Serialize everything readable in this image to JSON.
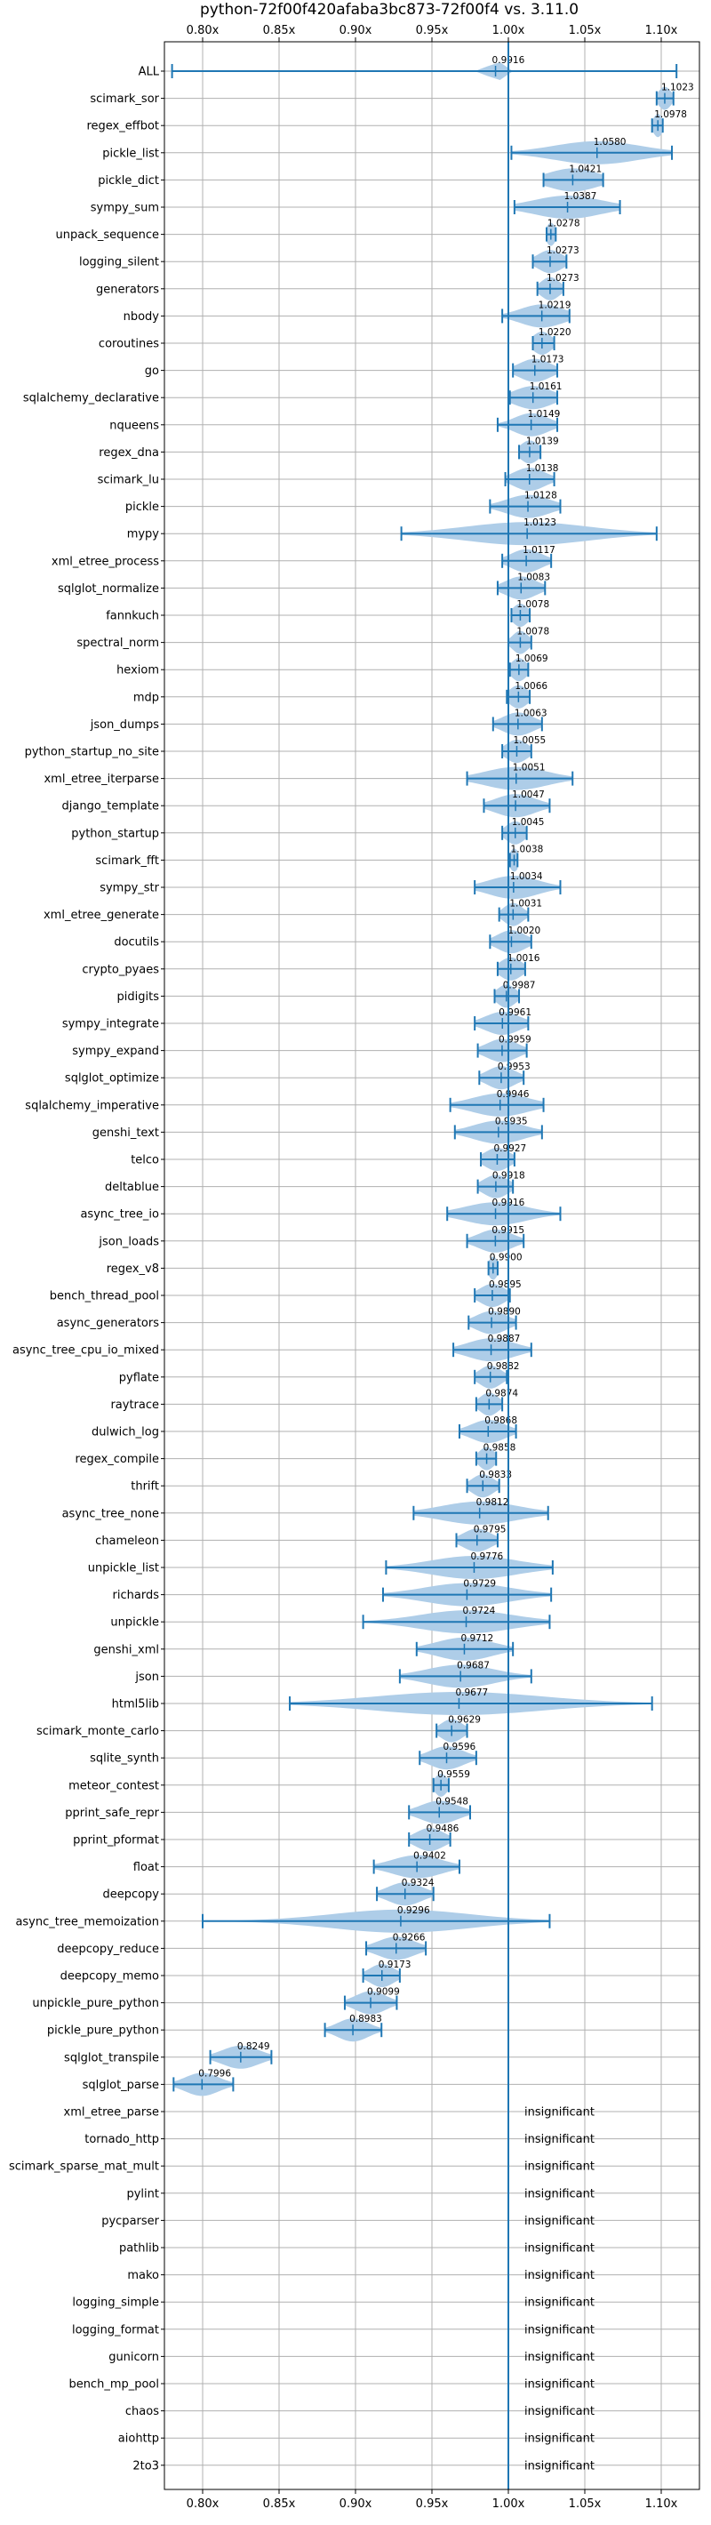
{
  "chart_data": {
    "type": "violin",
    "title": "python-72f00f420afaba3bc873-72f00f4 vs. 3.11.0",
    "xlim": [
      0.775,
      1.125
    ],
    "x_ticks": [
      {
        "value": 0.8,
        "label": "0.80x"
      },
      {
        "value": 0.85,
        "label": "0.85x"
      },
      {
        "value": 0.9,
        "label": "0.90x"
      },
      {
        "value": 0.95,
        "label": "0.95x"
      },
      {
        "value": 1.0,
        "label": "1.00x"
      },
      {
        "value": 1.05,
        "label": "1.05x"
      },
      {
        "value": 1.1,
        "label": "1.10x"
      }
    ],
    "reference_value": 1.0,
    "grid": true,
    "colors": {
      "violin": "#aecde8",
      "line": "#1f77b4",
      "grid": "#b0b0b0"
    },
    "insignificant_text": "insignificant",
    "benchmarks": [
      {
        "name": "ALL",
        "label": "0.9916",
        "mean": 0.9916,
        "min": 0.78,
        "max": 1.11,
        "spread": 0.004
      },
      {
        "name": "scimark_sor",
        "label": "1.1023",
        "mean": 1.1023,
        "min": 1.097,
        "max": 1.108,
        "spread": 0.004
      },
      {
        "name": "regex_effbot",
        "label": "1.0978",
        "mean": 1.0978,
        "min": 1.094,
        "max": 1.101,
        "spread": 0.003
      },
      {
        "name": "pickle_list",
        "label": "1.0580",
        "mean": 1.058,
        "min": 1.002,
        "max": 1.107,
        "spread": 0.028
      },
      {
        "name": "pickle_dict",
        "label": "1.0421",
        "mean": 1.0421,
        "min": 1.023,
        "max": 1.062,
        "spread": 0.016
      },
      {
        "name": "sympy_sum",
        "label": "1.0387",
        "mean": 1.0387,
        "min": 1.004,
        "max": 1.073,
        "spread": 0.022
      },
      {
        "name": "unpack_sequence",
        "label": "1.0278",
        "mean": 1.0278,
        "min": 1.025,
        "max": 1.031,
        "spread": 0.003
      },
      {
        "name": "logging_silent",
        "label": "1.0273",
        "mean": 1.0273,
        "min": 1.016,
        "max": 1.038,
        "spread": 0.008
      },
      {
        "name": "generators",
        "label": "1.0273",
        "mean": 1.0273,
        "min": 1.019,
        "max": 1.036,
        "spread": 0.006
      },
      {
        "name": "nbody",
        "label": "1.0219",
        "mean": 1.0219,
        "min": 0.996,
        "max": 1.04,
        "spread": 0.014
      },
      {
        "name": "coroutines",
        "label": "1.0220",
        "mean": 1.022,
        "min": 1.016,
        "max": 1.03,
        "spread": 0.006
      },
      {
        "name": "go",
        "label": "1.0173",
        "mean": 1.0173,
        "min": 1.003,
        "max": 1.032,
        "spread": 0.01
      },
      {
        "name": "sqlalchemy_declarative",
        "label": "1.0161",
        "mean": 1.0161,
        "min": 1.001,
        "max": 1.032,
        "spread": 0.012
      },
      {
        "name": "nqueens",
        "label": "1.0149",
        "mean": 1.0149,
        "min": 0.993,
        "max": 1.032,
        "spread": 0.011
      },
      {
        "name": "regex_dna",
        "label": "1.0139",
        "mean": 1.0139,
        "min": 1.007,
        "max": 1.021,
        "spread": 0.006
      },
      {
        "name": "scimark_lu",
        "label": "1.0138",
        "mean": 1.0138,
        "min": 0.998,
        "max": 1.03,
        "spread": 0.01
      },
      {
        "name": "pickle",
        "label": "1.0128",
        "mean": 1.0128,
        "min": 0.988,
        "max": 1.034,
        "spread": 0.014
      },
      {
        "name": "mypy",
        "label": "1.0123",
        "mean": 1.0123,
        "min": 0.93,
        "max": 1.097,
        "spread": 0.04
      },
      {
        "name": "xml_etree_process",
        "label": "1.0117",
        "mean": 1.0117,
        "min": 0.996,
        "max": 1.028,
        "spread": 0.01
      },
      {
        "name": "sqlglot_normalize",
        "label": "1.0083",
        "mean": 1.0083,
        "min": 0.993,
        "max": 1.024,
        "spread": 0.01
      },
      {
        "name": "fannkuch",
        "label": "1.0078",
        "mean": 1.0078,
        "min": 1.002,
        "max": 1.014,
        "spread": 0.005
      },
      {
        "name": "spectral_norm",
        "label": "1.0078",
        "mean": 1.0078,
        "min": 1.0,
        "max": 1.015,
        "spread": 0.005
      },
      {
        "name": "hexiom",
        "label": "1.0069",
        "mean": 1.0069,
        "min": 1.001,
        "max": 1.013,
        "spread": 0.005
      },
      {
        "name": "mdp",
        "label": "1.0066",
        "mean": 1.0066,
        "min": 0.999,
        "max": 1.014,
        "spread": 0.006
      },
      {
        "name": "json_dumps",
        "label": "1.0063",
        "mean": 1.0063,
        "min": 0.99,
        "max": 1.022,
        "spread": 0.01
      },
      {
        "name": "python_startup_no_site",
        "label": "1.0055",
        "mean": 1.0055,
        "min": 0.996,
        "max": 1.015,
        "spread": 0.007
      },
      {
        "name": "xml_etree_iterparse",
        "label": "1.0051",
        "mean": 1.0051,
        "min": 0.973,
        "max": 1.042,
        "spread": 0.02
      },
      {
        "name": "django_template",
        "label": "1.0047",
        "mean": 1.0047,
        "min": 0.984,
        "max": 1.027,
        "spread": 0.013
      },
      {
        "name": "python_startup",
        "label": "1.0045",
        "mean": 1.0045,
        "min": 0.996,
        "max": 1.012,
        "spread": 0.006
      },
      {
        "name": "scimark_fft",
        "label": "1.0038",
        "mean": 1.0038,
        "min": 1.001,
        "max": 1.006,
        "spread": 0.003
      },
      {
        "name": "sympy_str",
        "label": "1.0034",
        "mean": 1.0034,
        "min": 0.978,
        "max": 1.034,
        "spread": 0.016
      },
      {
        "name": "xml_etree_generate",
        "label": "1.0031",
        "mean": 1.0031,
        "min": 0.994,
        "max": 1.013,
        "spread": 0.006
      },
      {
        "name": "docutils",
        "label": "1.0020",
        "mean": 1.002,
        "min": 0.988,
        "max": 1.015,
        "spread": 0.009
      },
      {
        "name": "crypto_pyaes",
        "label": "1.0016",
        "mean": 1.0016,
        "min": 0.993,
        "max": 1.011,
        "spread": 0.007
      },
      {
        "name": "pidigits",
        "label": "0.9987",
        "mean": 0.9987,
        "min": 0.991,
        "max": 1.007,
        "spread": 0.006
      },
      {
        "name": "sympy_integrate",
        "label": "0.9961",
        "mean": 0.9961,
        "min": 0.978,
        "max": 1.013,
        "spread": 0.011
      },
      {
        "name": "sympy_expand",
        "label": "0.9959",
        "mean": 0.9959,
        "min": 0.98,
        "max": 1.012,
        "spread": 0.01
      },
      {
        "name": "sqlglot_optimize",
        "label": "0.9953",
        "mean": 0.9953,
        "min": 0.981,
        "max": 1.01,
        "spread": 0.009
      },
      {
        "name": "sqlalchemy_imperative",
        "label": "0.9946",
        "mean": 0.9946,
        "min": 0.962,
        "max": 1.023,
        "spread": 0.018
      },
      {
        "name": "genshi_text",
        "label": "0.9935",
        "mean": 0.9935,
        "min": 0.965,
        "max": 1.022,
        "spread": 0.016
      },
      {
        "name": "telco",
        "label": "0.9927",
        "mean": 0.9927,
        "min": 0.982,
        "max": 1.004,
        "spread": 0.008
      },
      {
        "name": "deltablue",
        "label": "0.9918",
        "mean": 0.9918,
        "min": 0.98,
        "max": 1.003,
        "spread": 0.008
      },
      {
        "name": "async_tree_io",
        "label": "0.9916",
        "mean": 0.9916,
        "min": 0.96,
        "max": 1.034,
        "spread": 0.02
      },
      {
        "name": "json_loads",
        "label": "0.9915",
        "mean": 0.9915,
        "min": 0.973,
        "max": 1.01,
        "spread": 0.011
      },
      {
        "name": "regex_v8",
        "label": "0.9900",
        "mean": 0.99,
        "min": 0.987,
        "max": 0.993,
        "spread": 0.003
      },
      {
        "name": "bench_thread_pool",
        "label": "0.9895",
        "mean": 0.9895,
        "min": 0.978,
        "max": 1.001,
        "spread": 0.008
      },
      {
        "name": "async_generators",
        "label": "0.9890",
        "mean": 0.989,
        "min": 0.974,
        "max": 1.005,
        "spread": 0.01
      },
      {
        "name": "async_tree_cpu_io_mixed",
        "label": "0.9887",
        "mean": 0.9887,
        "min": 0.964,
        "max": 1.015,
        "spread": 0.015
      },
      {
        "name": "pyflate",
        "label": "0.9882",
        "mean": 0.9882,
        "min": 0.978,
        "max": 0.999,
        "spread": 0.007
      },
      {
        "name": "raytrace",
        "label": "0.9874",
        "mean": 0.9874,
        "min": 0.979,
        "max": 0.996,
        "spread": 0.006
      },
      {
        "name": "dulwich_log",
        "label": "0.9868",
        "mean": 0.9868,
        "min": 0.968,
        "max": 1.005,
        "spread": 0.011
      },
      {
        "name": "regex_compile",
        "label": "0.9858",
        "mean": 0.9858,
        "min": 0.979,
        "max": 0.992,
        "spread": 0.005
      },
      {
        "name": "thrift",
        "label": "0.9833",
        "mean": 0.9833,
        "min": 0.973,
        "max": 0.994,
        "spread": 0.007
      },
      {
        "name": "async_tree_none",
        "label": "0.9812",
        "mean": 0.9812,
        "min": 0.938,
        "max": 1.026,
        "spread": 0.025
      },
      {
        "name": "chameleon",
        "label": "0.9795",
        "mean": 0.9795,
        "min": 0.966,
        "max": 0.993,
        "spread": 0.009
      },
      {
        "name": "unpickle_list",
        "label": "0.9776",
        "mean": 0.9776,
        "min": 0.92,
        "max": 1.029,
        "spread": 0.028
      },
      {
        "name": "richards",
        "label": "0.9729",
        "mean": 0.9729,
        "min": 0.918,
        "max": 1.028,
        "spread": 0.028
      },
      {
        "name": "unpickle",
        "label": "0.9724",
        "mean": 0.9724,
        "min": 0.905,
        "max": 1.027,
        "spread": 0.03
      },
      {
        "name": "genshi_xml",
        "label": "0.9712",
        "mean": 0.9712,
        "min": 0.94,
        "max": 1.003,
        "spread": 0.018
      },
      {
        "name": "json",
        "label": "0.9687",
        "mean": 0.9687,
        "min": 0.929,
        "max": 1.015,
        "spread": 0.022
      },
      {
        "name": "html5lib",
        "label": "0.9677",
        "mean": 0.9677,
        "min": 0.857,
        "max": 1.094,
        "spread": 0.055
      },
      {
        "name": "scimark_monte_carlo",
        "label": "0.9629",
        "mean": 0.9629,
        "min": 0.953,
        "max": 0.973,
        "spread": 0.007
      },
      {
        "name": "sqlite_synth",
        "label": "0.9596",
        "mean": 0.9596,
        "min": 0.942,
        "max": 0.979,
        "spread": 0.011
      },
      {
        "name": "meteor_contest",
        "label": "0.9559",
        "mean": 0.9559,
        "min": 0.951,
        "max": 0.961,
        "spread": 0.004
      },
      {
        "name": "pprint_safe_repr",
        "label": "0.9548",
        "mean": 0.9548,
        "min": 0.935,
        "max": 0.975,
        "spread": 0.012
      },
      {
        "name": "pprint_pformat",
        "label": "0.9486",
        "mean": 0.9486,
        "min": 0.935,
        "max": 0.962,
        "spread": 0.009
      },
      {
        "name": "float",
        "label": "0.9402",
        "mean": 0.9402,
        "min": 0.912,
        "max": 0.968,
        "spread": 0.016
      },
      {
        "name": "deepcopy",
        "label": "0.9324",
        "mean": 0.9324,
        "min": 0.914,
        "max": 0.951,
        "spread": 0.011
      },
      {
        "name": "async_tree_memoization",
        "label": "0.9296",
        "mean": 0.9296,
        "min": 0.8,
        "max": 1.027,
        "spread": 0.045
      },
      {
        "name": "deepcopy_reduce",
        "label": "0.9266",
        "mean": 0.9266,
        "min": 0.907,
        "max": 0.946,
        "spread": 0.012
      },
      {
        "name": "deepcopy_memo",
        "label": "0.9173",
        "mean": 0.9173,
        "min": 0.905,
        "max": 0.929,
        "spread": 0.008
      },
      {
        "name": "unpickle_pure_python",
        "label": "0.9099",
        "mean": 0.9099,
        "min": 0.893,
        "max": 0.927,
        "spread": 0.01
      },
      {
        "name": "pickle_pure_python",
        "label": "0.8983",
        "mean": 0.8983,
        "min": 0.88,
        "max": 0.917,
        "spread": 0.01
      },
      {
        "name": "sqlglot_transpile",
        "label": "0.8249",
        "mean": 0.8249,
        "min": 0.805,
        "max": 0.845,
        "spread": 0.012
      },
      {
        "name": "sqlglot_parse",
        "label": "0.7996",
        "mean": 0.7996,
        "min": 0.781,
        "max": 0.82,
        "spread": 0.011
      },
      {
        "name": "xml_etree_parse",
        "label": "",
        "insignificant": true
      },
      {
        "name": "tornado_http",
        "label": "",
        "insignificant": true
      },
      {
        "name": "scimark_sparse_mat_mult",
        "label": "",
        "insignificant": true
      },
      {
        "name": "pylint",
        "label": "",
        "insignificant": true
      },
      {
        "name": "pycparser",
        "label": "",
        "insignificant": true
      },
      {
        "name": "pathlib",
        "label": "",
        "insignificant": true
      },
      {
        "name": "mako",
        "label": "",
        "insignificant": true
      },
      {
        "name": "logging_simple",
        "label": "",
        "insignificant": true
      },
      {
        "name": "logging_format",
        "label": "",
        "insignificant": true
      },
      {
        "name": "gunicorn",
        "label": "",
        "insignificant": true
      },
      {
        "name": "bench_mp_pool",
        "label": "",
        "insignificant": true
      },
      {
        "name": "chaos",
        "label": "",
        "insignificant": true
      },
      {
        "name": "aiohttp",
        "label": "",
        "insignificant": true
      },
      {
        "name": "2to3",
        "label": "",
        "insignificant": true
      }
    ]
  }
}
